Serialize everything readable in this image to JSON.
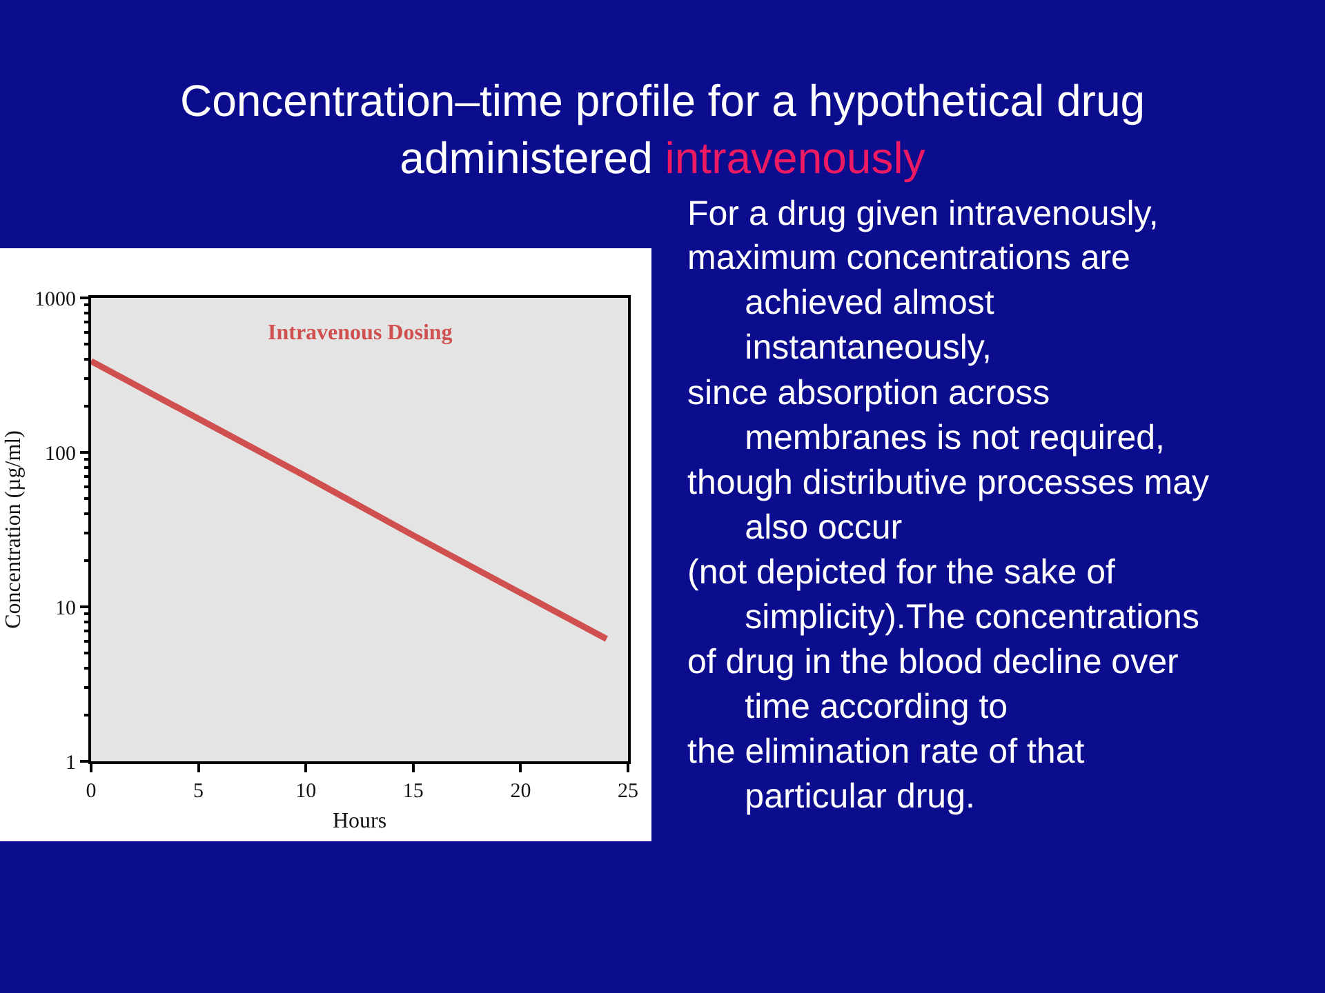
{
  "chart_data": {
    "type": "line",
    "title": "Concentration–time profile for a hypothetical drug\nadministered intravenously",
    "xlabel": "Hours",
    "ylabel": "Concentration (µg/ml)",
    "x": [
      0,
      5,
      10,
      15,
      20,
      24
    ],
    "series": [
      {
        "name": "Intravenous Dosing",
        "color": "#d0504f",
        "values": [
          390,
          165,
          70,
          29,
          12.3,
          6.2
        ]
      }
    ],
    "xlim": [
      0,
      25
    ],
    "xticks": [
      0,
      5,
      10,
      15,
      20,
      25
    ],
    "ylim": [
      1,
      1000
    ],
    "yticks": [
      1,
      10,
      100,
      1000
    ],
    "log": "y",
    "grid": false,
    "legend": false,
    "marker": "none",
    "line_style": "solid",
    "annotations": [
      "For a drug given intravenously,",
      "maximum concentrations are\nachieved almost\ninstantaneously,",
      "since absorption across\nmembranes is not required,",
      "though distributive processes may\nalso occur",
      "(not depicted for the sake of\nsimplicity).The concentrations",
      "of drug in the blood decline over\ntime according to",
      "the elimination rate of that\nparticular drug."
    ]
  }
}
